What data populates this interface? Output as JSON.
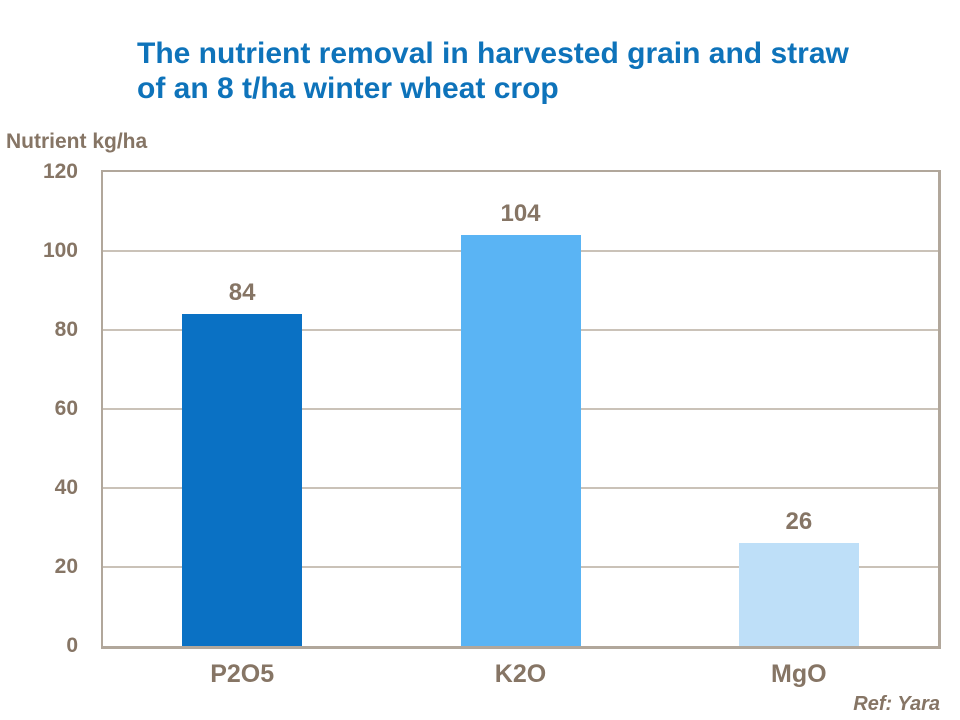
{
  "slide": {
    "title_line1": "The nutrient removal in harvested grain and straw",
    "title_line2": "of an 8 t/ha winter wheat crop",
    "reference": "Ref: Yara"
  },
  "chart_data": {
    "type": "bar",
    "title": "The nutrient removal in harvested grain and straw of an 8 t/ha winter wheat crop",
    "xlabel": "",
    "ylabel": "Nutrient kg/ha",
    "categories": [
      "P2O5",
      "K2O",
      "MgO"
    ],
    "values": [
      84,
      104,
      26
    ],
    "value_labels": [
      "84",
      "104",
      "26"
    ],
    "ylim": [
      0,
      120
    ],
    "yticks": [
      0,
      20,
      40,
      60,
      80,
      100,
      120
    ],
    "grid": "horizontal",
    "legend": "none",
    "bar_colors": [
      "#0a71c4",
      "#5ab4f4",
      "#bedff8"
    ],
    "colors": {
      "title_text": "#0e73ba",
      "label_text": "#867565",
      "axis_border": "#b1a79b",
      "gridline": "#cac2b8",
      "background": "#ffffff"
    }
  }
}
